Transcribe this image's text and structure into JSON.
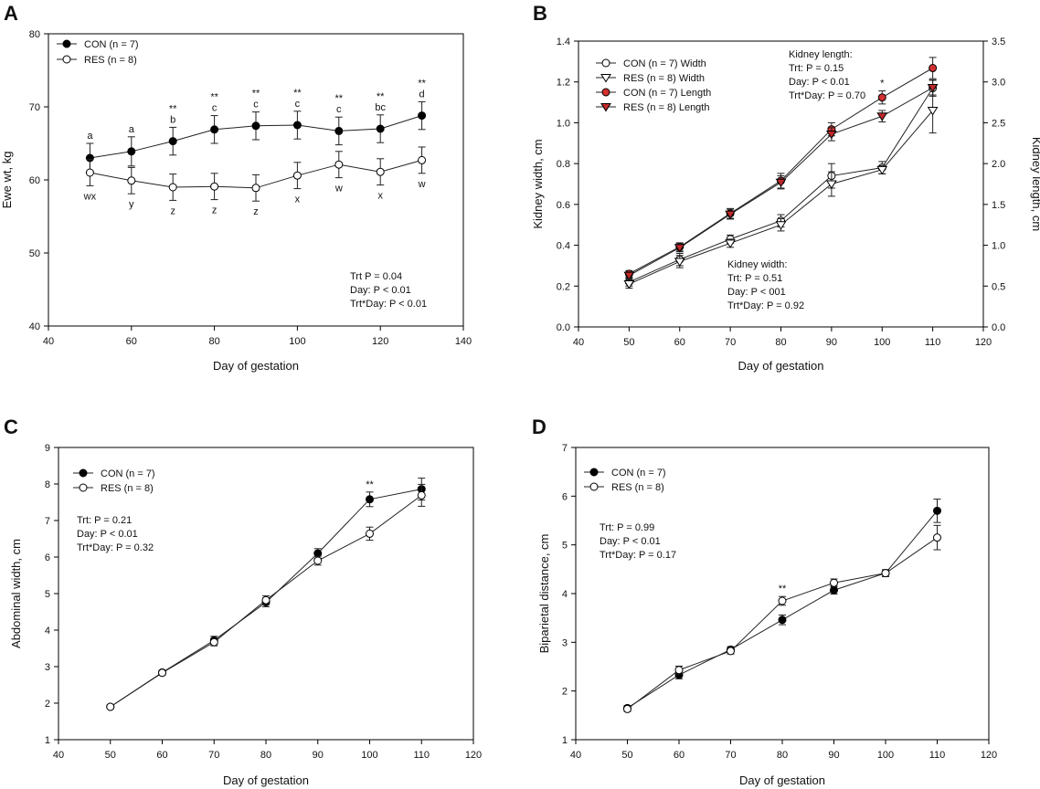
{
  "chart_data": [
    {
      "panel": "A",
      "type": "line",
      "xlabel": "Day of gestation",
      "ylabel": "Ewe wt, kg",
      "xlim": [
        40,
        140
      ],
      "ylim": [
        40,
        80
      ],
      "xticks": [
        40,
        60,
        80,
        100,
        120,
        140
      ],
      "yticks": [
        40,
        50,
        60,
        70,
        80
      ],
      "x": [
        50,
        60,
        70,
        80,
        90,
        100,
        110,
        120,
        130
      ],
      "series": [
        {
          "name": "CON (n = 7)",
          "marker": "filled-circle",
          "color": "#000000",
          "values": [
            63.0,
            63.9,
            65.3,
            66.9,
            67.4,
            67.5,
            66.7,
            67.0,
            68.8
          ],
          "errors": [
            2.0,
            2.0,
            1.9,
            1.9,
            1.9,
            1.9,
            1.9,
            1.9,
            1.9
          ]
        },
        {
          "name": "RES (n = 8)",
          "marker": "open-circle",
          "color": "#ffffff",
          "values": [
            61.0,
            59.9,
            59.0,
            59.1,
            58.9,
            60.6,
            62.1,
            61.1,
            62.7
          ],
          "errors": [
            1.8,
            1.8,
            1.8,
            1.8,
            1.8,
            1.8,
            1.8,
            1.8,
            1.8
          ]
        }
      ],
      "annotations_above": [
        {
          "x": 50,
          "lines": [
            "a"
          ]
        },
        {
          "x": 60,
          "lines": [
            "a"
          ]
        },
        {
          "x": 70,
          "lines": [
            "**",
            "b"
          ]
        },
        {
          "x": 80,
          "lines": [
            "**",
            "c"
          ]
        },
        {
          "x": 90,
          "lines": [
            "**",
            "c"
          ]
        },
        {
          "x": 100,
          "lines": [
            "**",
            "c"
          ]
        },
        {
          "x": 110,
          "lines": [
            "**",
            "c"
          ]
        },
        {
          "x": 120,
          "lines": [
            "**",
            "bc"
          ]
        },
        {
          "x": 130,
          "lines": [
            "**",
            "d"
          ]
        }
      ],
      "annotations_below": [
        {
          "x": 50,
          "label": "wx"
        },
        {
          "x": 60,
          "label": "y"
        },
        {
          "x": 70,
          "label": "z"
        },
        {
          "x": 80,
          "label": "z"
        },
        {
          "x": 90,
          "label": "z"
        },
        {
          "x": 100,
          "label": "x"
        },
        {
          "x": 110,
          "label": "w"
        },
        {
          "x": 120,
          "label": "x"
        },
        {
          "x": 130,
          "label": "w"
        }
      ],
      "stats": [
        "Trt P = 0.04",
        "Day: P < 0.01",
        "Trt*Day: P < 0.01"
      ]
    },
    {
      "panel": "B",
      "type": "line",
      "xlabel": "Day of gestation",
      "ylabel": "Kidney width, cm",
      "y2label": "Kidney length, cm",
      "xlim": [
        40,
        120
      ],
      "ylim": [
        0.0,
        1.4
      ],
      "y2lim": [
        0.0,
        3.5
      ],
      "xticks": [
        40,
        50,
        60,
        70,
        80,
        90,
        100,
        110,
        120
      ],
      "yticks": [
        0.0,
        0.2,
        0.4,
        0.6,
        0.8,
        1.0,
        1.2,
        1.4
      ],
      "y2ticks": [
        0.0,
        0.5,
        1.0,
        1.5,
        2.0,
        2.5,
        3.0,
        3.5
      ],
      "x": [
        50,
        60,
        70,
        80,
        90,
        100,
        110
      ],
      "series": [
        {
          "name": "CON (n = 7) Width",
          "marker": "open-circle",
          "axis": "left",
          "color": "#ffffff",
          "values": [
            0.22,
            0.33,
            0.43,
            0.52,
            0.74,
            0.78,
            1.17
          ],
          "errors": [
            0.02,
            0.03,
            0.02,
            0.03,
            0.06,
            0.03,
            0.04
          ]
        },
        {
          "name": "RES (n = 8) Width",
          "marker": "open-triangle-down",
          "axis": "left",
          "color": "#ffffff",
          "values": [
            0.21,
            0.32,
            0.41,
            0.5,
            0.7,
            0.77,
            1.06
          ],
          "errors": [
            0.02,
            0.03,
            0.02,
            0.03,
            0.06,
            0.02,
            0.11
          ]
        },
        {
          "name": "CON (n = 7) Length",
          "marker": "red-circle",
          "axis": "right",
          "color": "#d23030",
          "values": [
            0.65,
            0.98,
            1.39,
            1.79,
            2.42,
            2.81,
            3.17
          ],
          "errors": [
            0.04,
            0.05,
            0.06,
            0.09,
            0.08,
            0.08,
            0.13
          ]
        },
        {
          "name": "RES (n = 8) Length",
          "marker": "red-triangle-down",
          "axis": "right",
          "color": "#d23030",
          "values": [
            0.63,
            0.97,
            1.38,
            1.77,
            2.36,
            2.58,
            2.93
          ],
          "errors": [
            0.04,
            0.05,
            0.06,
            0.08,
            0.08,
            0.07,
            0.09
          ]
        }
      ],
      "annotations_above": [
        {
          "x": 100,
          "lines": [
            "*"
          ]
        }
      ],
      "stats_length": [
        "Kidney length:",
        "Trt: P = 0.15",
        "Day: P < 0.01",
        "Trt*Day: P = 0.70"
      ],
      "stats_width": [
        "Kidney width:",
        "Trt: P = 0.51",
        "Day: P < 001",
        "Trt*Day: P = 0.92"
      ]
    },
    {
      "panel": "C",
      "type": "line",
      "xlabel": "Day of gestation",
      "ylabel": "Abdominal width, cm",
      "xlim": [
        40,
        120
      ],
      "ylim": [
        1,
        9
      ],
      "xticks": [
        40,
        50,
        60,
        70,
        80,
        90,
        100,
        110,
        120
      ],
      "yticks": [
        1,
        2,
        3,
        4,
        5,
        6,
        7,
        8,
        9
      ],
      "x": [
        50,
        60,
        70,
        80,
        90,
        100,
        110
      ],
      "series": [
        {
          "name": "CON (n = 7)",
          "marker": "filled-circle",
          "color": "#000000",
          "values": [
            1.9,
            2.84,
            3.72,
            4.76,
            6.1,
            7.58,
            7.86
          ],
          "errors": [
            0.05,
            0.06,
            0.11,
            0.12,
            0.13,
            0.2,
            0.3
          ]
        },
        {
          "name": "RES (n = 8)",
          "marker": "open-circle",
          "color": "#ffffff",
          "values": [
            1.9,
            2.83,
            3.67,
            4.82,
            5.9,
            6.64,
            7.69
          ],
          "errors": [
            0.05,
            0.06,
            0.1,
            0.12,
            0.12,
            0.18,
            0.3
          ]
        }
      ],
      "annotations_above": [
        {
          "x": 100,
          "lines": [
            "**"
          ]
        }
      ],
      "stats": [
        "Trt: P = 0.21",
        "Day: P < 0.01",
        "Trt*Day: P = 0.32"
      ]
    },
    {
      "panel": "D",
      "type": "line",
      "xlabel": "Day of gestation",
      "ylabel": "Biparietal distance, cm",
      "xlim": [
        40,
        120
      ],
      "ylim": [
        1,
        7
      ],
      "xticks": [
        40,
        50,
        60,
        70,
        80,
        90,
        100,
        110,
        120
      ],
      "yticks": [
        1,
        2,
        3,
        4,
        5,
        6,
        7
      ],
      "x": [
        50,
        60,
        70,
        80,
        90,
        100,
        110
      ],
      "series": [
        {
          "name": "CON (n = 7)",
          "marker": "filled-circle",
          "color": "#000000",
          "values": [
            1.65,
            2.33,
            2.85,
            3.46,
            4.07,
            4.42,
            5.7
          ],
          "errors": [
            0.05,
            0.08,
            0.06,
            0.1,
            0.08,
            0.07,
            0.24
          ]
        },
        {
          "name": "RES (n = 8)",
          "marker": "open-circle",
          "color": "#ffffff",
          "values": [
            1.63,
            2.43,
            2.82,
            3.85,
            4.22,
            4.42,
            5.15
          ],
          "errors": [
            0.05,
            0.08,
            0.06,
            0.09,
            0.08,
            0.07,
            0.25
          ]
        }
      ],
      "annotations_above": [
        {
          "x": 80,
          "lines": [
            "**"
          ]
        }
      ],
      "stats": [
        "Trt: P = 0.99",
        "Day: P < 0.01",
        "Trt*Day: P = 0.17"
      ]
    }
  ]
}
